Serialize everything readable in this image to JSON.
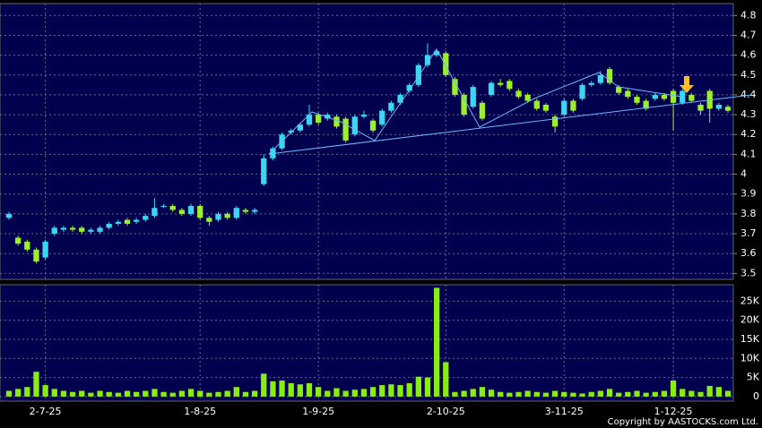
{
  "chart_data": {
    "type": "candlestick",
    "categories": [
      null,
      null,
      null,
      null,
      "2-7-25",
      null,
      null,
      null,
      null,
      null,
      null,
      null,
      null,
      null,
      null,
      null,
      null,
      null,
      null,
      null,
      null,
      "1-8-25",
      null,
      null,
      null,
      null,
      null,
      null,
      null,
      null,
      null,
      null,
      null,
      null,
      "1-9-25",
      null,
      null,
      null,
      null,
      null,
      null,
      null,
      null,
      null,
      null,
      null,
      null,
      null,
      "2-10-25",
      null,
      null,
      null,
      null,
      null,
      null,
      null,
      null,
      null,
      null,
      null,
      null,
      "3-11-25",
      null,
      null,
      null,
      null,
      null,
      null,
      null,
      null,
      null,
      null,
      null,
      "1-12-25",
      null,
      null,
      null,
      null,
      null,
      null
    ],
    "open": [
      3.78,
      3.68,
      3.66,
      3.62,
      3.58,
      3.7,
      3.72,
      3.73,
      3.73,
      3.71,
      3.71,
      3.73,
      3.75,
      3.77,
      3.76,
      3.77,
      3.79,
      3.84,
      3.84,
      3.82,
      3.8,
      3.84,
      3.78,
      3.77,
      3.8,
      3.78,
      3.82,
      3.81,
      3.95,
      4.08,
      4.13,
      4.21,
      4.22,
      4.25,
      4.3,
      4.28,
      4.29,
      4.28,
      4.2,
      4.29,
      4.27,
      4.25,
      4.32,
      4.36,
      4.42,
      4.45,
      4.55,
      4.6,
      4.61,
      4.48,
      4.4,
      4.34,
      4.36,
      4.4,
      4.46,
      4.47,
      4.42,
      4.4,
      4.37,
      4.35,
      4.29,
      4.3,
      4.37,
      4.38,
      4.45,
      4.46,
      4.53,
      4.44,
      4.42,
      4.39,
      4.37,
      4.38,
      4.4,
      4.42,
      4.36,
      4.4,
      4.35,
      4.42,
      4.33,
      4.34
    ],
    "high": [
      3.81,
      3.69,
      3.67,
      3.63,
      3.67,
      3.74,
      3.74,
      3.74,
      3.74,
      3.73,
      3.74,
      3.76,
      3.77,
      3.78,
      3.78,
      3.8,
      3.88,
      3.85,
      3.85,
      3.83,
      3.85,
      3.85,
      3.79,
      3.81,
      3.81,
      3.84,
      3.83,
      3.83,
      4.1,
      4.14,
      4.21,
      4.23,
      4.26,
      4.35,
      4.31,
      4.31,
      4.3,
      4.29,
      4.3,
      4.32,
      4.28,
      4.33,
      4.37,
      4.41,
      4.46,
      4.56,
      4.66,
      4.63,
      4.62,
      4.49,
      4.41,
      4.45,
      4.37,
      4.47,
      4.48,
      4.48,
      4.43,
      4.41,
      4.38,
      4.36,
      4.3,
      4.38,
      4.38,
      4.46,
      4.47,
      4.52,
      4.54,
      4.45,
      4.43,
      4.4,
      4.38,
      4.41,
      4.41,
      4.43,
      4.43,
      4.41,
      4.36,
      4.43,
      4.36,
      4.35
    ],
    "low": [
      3.77,
      3.64,
      3.61,
      3.55,
      3.57,
      3.69,
      3.71,
      3.71,
      3.7,
      3.7,
      3.7,
      3.72,
      3.74,
      3.74,
      3.75,
      3.76,
      3.78,
      3.83,
      3.81,
      3.79,
      3.79,
      3.77,
      3.74,
      3.76,
      3.77,
      3.77,
      3.8,
      3.8,
      3.94,
      4.07,
      4.12,
      4.2,
      4.21,
      4.24,
      4.25,
      4.27,
      4.23,
      4.16,
      4.19,
      4.28,
      4.21,
      4.24,
      4.31,
      4.35,
      4.41,
      4.44,
      4.54,
      4.59,
      4.49,
      4.39,
      4.29,
      4.33,
      4.27,
      4.39,
      4.44,
      4.42,
      4.38,
      4.36,
      4.32,
      4.31,
      4.21,
      4.29,
      4.31,
      4.37,
      4.44,
      4.45,
      4.45,
      4.4,
      4.38,
      4.35,
      4.32,
      4.37,
      4.37,
      4.22,
      4.35,
      4.36,
      4.3,
      4.26,
      4.32,
      4.31
    ],
    "close": [
      3.8,
      3.65,
      3.62,
      3.56,
      3.66,
      3.73,
      3.73,
      3.72,
      3.71,
      3.72,
      3.73,
      3.75,
      3.76,
      3.75,
      3.77,
      3.79,
      3.83,
      3.84,
      3.82,
      3.8,
      3.84,
      3.78,
      3.76,
      3.8,
      3.78,
      3.83,
      3.81,
      3.82,
      4.08,
      4.13,
      4.2,
      4.22,
      4.25,
      4.3,
      4.26,
      4.3,
      4.24,
      4.17,
      4.29,
      4.3,
      4.22,
      4.32,
      4.36,
      4.4,
      4.45,
      4.55,
      4.6,
      4.62,
      4.5,
      4.4,
      4.3,
      4.44,
      4.28,
      4.46,
      4.45,
      4.43,
      4.39,
      4.37,
      4.33,
      4.32,
      4.24,
      4.37,
      4.32,
      4.45,
      4.46,
      4.5,
      4.46,
      4.41,
      4.39,
      4.36,
      4.33,
      4.4,
      4.38,
      4.36,
      4.42,
      4.37,
      4.32,
      4.33,
      4.35,
      4.32
    ],
    "volume": [
      1500,
      2000,
      2500,
      6500,
      3000,
      2000,
      1500,
      1200,
      1500,
      1000,
      1500,
      1200,
      1000,
      1500,
      1200,
      1500,
      2000,
      1200,
      1000,
      1500,
      2000,
      1500,
      1000,
      1200,
      1500,
      2500,
      1200,
      1500,
      6000,
      4000,
      4200,
      3500,
      3200,
      3500,
      2500,
      1500,
      2200,
      1500,
      1800,
      2000,
      2500,
      3000,
      3200,
      3000,
      3500,
      5200,
      5000,
      28500,
      9000,
      1200,
      1500,
      2000,
      2500,
      1800,
      1200,
      1000,
      1200,
      1500,
      1200,
      1000,
      1500,
      1200,
      1000,
      800,
      1200,
      1500,
      2000,
      1000,
      1200,
      1500,
      1000,
      1200,
      1500,
      4200,
      2000,
      1500,
      1200,
      2800,
      2500,
      1500
    ],
    "up_color": "#3ad8f0",
    "down_color": "#9cf02a",
    "volume_color": "#88ee11",
    "ylim": [
      3.47,
      4.86
    ],
    "yticks": [
      3.5,
      3.6,
      3.7,
      3.8,
      3.9,
      4,
      4.1,
      4.2,
      4.3,
      4.4,
      4.5,
      4.6,
      4.7,
      4.8
    ],
    "volume_ylim": [
      -1200,
      29300
    ],
    "volume_yticks": [
      0,
      {
        "value": 5000,
        "label": "5K"
      },
      {
        "value": 10000,
        "label": "10K"
      },
      {
        "value": 15000,
        "label": "15K"
      },
      {
        "value": 20000,
        "label": "20K"
      },
      {
        "value": 25000,
        "label": "25K"
      }
    ],
    "grid": true,
    "copyright": "Copyright by AASTOCKS.com Ltd."
  }
}
